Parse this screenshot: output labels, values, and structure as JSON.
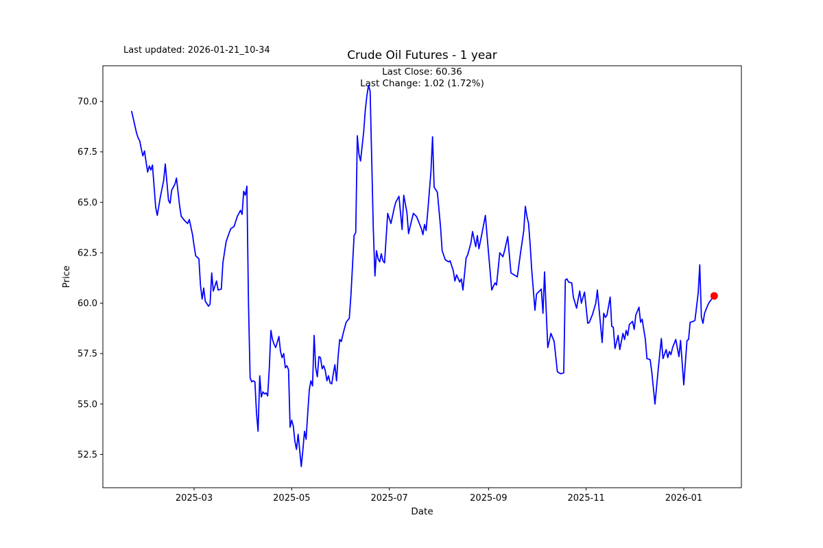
{
  "page": {
    "background": "#ffffff"
  },
  "header": {
    "last_updated": "Last updated: 2026-01-21_10-34"
  },
  "chart_data": {
    "type": "line",
    "title": "Crude Oil Futures - 1 year",
    "annotation": [
      "Last Close: 60.36",
      "Last Change: 1.02 (1.72%)"
    ],
    "last_close": 60.36,
    "last_change": "1.02 (1.72%)",
    "xlabel": "Date",
    "ylabel": "Price",
    "legend": "none",
    "grid": false,
    "line_color": "#0000ff",
    "marker_color": "#ff0000",
    "line_width": 1.8,
    "marker_radius": 5.5,
    "y_ticks": [
      52.5,
      55.0,
      57.5,
      60.0,
      62.5,
      65.0,
      67.5,
      70.0
    ],
    "x_ticks": [
      {
        "date": "2025-03-01",
        "label": "2025-03"
      },
      {
        "date": "2025-05-01",
        "label": "2025-05"
      },
      {
        "date": "2025-07-01",
        "label": "2025-07"
      },
      {
        "date": "2025-09-01",
        "label": "2025-09"
      },
      {
        "date": "2025-11-01",
        "label": "2025-11"
      },
      {
        "date": "2026-01-01",
        "label": "2026-01"
      }
    ],
    "ylim": [
      50.85,
      71.77
    ],
    "x_epoch": "2025-01-21",
    "xlim_dates": [
      "2025-01-03",
      "2026-02-06"
    ],
    "series": [
      {
        "name": "Price",
        "points": [
          [
            "2025-01-21",
            69.5
          ],
          [
            "2025-01-23",
            68.8
          ],
          [
            "2025-01-24",
            68.45
          ],
          [
            "2025-01-25",
            68.2
          ],
          [
            "2025-01-26",
            68.05
          ],
          [
            "2025-01-27",
            67.65
          ],
          [
            "2025-01-28",
            67.3
          ],
          [
            "2025-01-29",
            67.55
          ],
          [
            "2025-01-30",
            67.0
          ],
          [
            "2025-01-31",
            66.5
          ],
          [
            "2025-02-01",
            66.8
          ],
          [
            "2025-02-02",
            66.6
          ],
          [
            "2025-02-03",
            66.85
          ],
          [
            "2025-02-05",
            64.75
          ],
          [
            "2025-02-06",
            64.35
          ],
          [
            "2025-02-08",
            65.3
          ],
          [
            "2025-02-10",
            66.1
          ],
          [
            "2025-02-11",
            66.9
          ],
          [
            "2025-02-13",
            65.1
          ],
          [
            "2025-02-14",
            64.95
          ],
          [
            "2025-02-15",
            65.6
          ],
          [
            "2025-02-17",
            65.9
          ],
          [
            "2025-02-18",
            66.2
          ],
          [
            "2025-02-20",
            64.8
          ],
          [
            "2025-02-21",
            64.3
          ],
          [
            "2025-02-23",
            64.1
          ],
          [
            "2025-02-25",
            63.95
          ],
          [
            "2025-02-26",
            64.15
          ],
          [
            "2025-02-28",
            63.4
          ],
          [
            "2025-03-01",
            62.85
          ],
          [
            "2025-03-02",
            62.35
          ],
          [
            "2025-03-04",
            62.2
          ],
          [
            "2025-03-05",
            60.9
          ],
          [
            "2025-03-06",
            60.2
          ],
          [
            "2025-03-07",
            60.75
          ],
          [
            "2025-03-08",
            60.1
          ],
          [
            "2025-03-10",
            59.85
          ],
          [
            "2025-03-11",
            59.95
          ],
          [
            "2025-03-12",
            61.5
          ],
          [
            "2025-03-13",
            60.6
          ],
          [
            "2025-03-15",
            61.1
          ],
          [
            "2025-03-16",
            60.65
          ],
          [
            "2025-03-18",
            60.7
          ],
          [
            "2025-03-19",
            62.0
          ],
          [
            "2025-03-21",
            63.05
          ],
          [
            "2025-03-23",
            63.5
          ],
          [
            "2025-03-24",
            63.7
          ],
          [
            "2025-03-26",
            63.8
          ],
          [
            "2025-03-28",
            64.3
          ],
          [
            "2025-03-30",
            64.6
          ],
          [
            "2025-03-31",
            64.4
          ],
          [
            "2025-04-01",
            65.55
          ],
          [
            "2025-04-02",
            65.35
          ],
          [
            "2025-04-03",
            65.8
          ],
          [
            "2025-04-04",
            60.0
          ],
          [
            "2025-04-05",
            56.3
          ],
          [
            "2025-04-06",
            56.1
          ],
          [
            "2025-04-07",
            56.15
          ],
          [
            "2025-04-08",
            56.1
          ],
          [
            "2025-04-09",
            54.55
          ],
          [
            "2025-04-10",
            53.65
          ],
          [
            "2025-04-11",
            56.4
          ],
          [
            "2025-04-12",
            55.35
          ],
          [
            "2025-04-13",
            55.6
          ],
          [
            "2025-04-14",
            55.5
          ],
          [
            "2025-04-15",
            55.55
          ],
          [
            "2025-04-16",
            55.4
          ],
          [
            "2025-04-17",
            56.8
          ],
          [
            "2025-04-18",
            58.65
          ],
          [
            "2025-04-19",
            58.2
          ],
          [
            "2025-04-20",
            57.95
          ],
          [
            "2025-04-21",
            57.8
          ],
          [
            "2025-04-23",
            58.35
          ],
          [
            "2025-04-24",
            57.6
          ],
          [
            "2025-04-25",
            57.3
          ],
          [
            "2025-04-26",
            57.5
          ],
          [
            "2025-04-27",
            56.8
          ],
          [
            "2025-04-28",
            56.9
          ],
          [
            "2025-04-29",
            56.7
          ],
          [
            "2025-04-30",
            53.85
          ],
          [
            "2025-05-01",
            54.2
          ],
          [
            "2025-05-02",
            53.9
          ],
          [
            "2025-05-03",
            53.15
          ],
          [
            "2025-05-04",
            52.75
          ],
          [
            "2025-05-05",
            53.5
          ],
          [
            "2025-05-07",
            51.9
          ],
          [
            "2025-05-08",
            52.75
          ],
          [
            "2025-05-09",
            53.65
          ],
          [
            "2025-05-10",
            53.25
          ],
          [
            "2025-05-11",
            54.55
          ],
          [
            "2025-05-12",
            55.7
          ],
          [
            "2025-05-13",
            56.15
          ],
          [
            "2025-05-14",
            55.9
          ],
          [
            "2025-05-15",
            58.4
          ],
          [
            "2025-05-16",
            56.8
          ],
          [
            "2025-05-17",
            56.35
          ],
          [
            "2025-05-18",
            57.35
          ],
          [
            "2025-05-19",
            57.3
          ],
          [
            "2025-05-20",
            56.75
          ],
          [
            "2025-05-21",
            56.9
          ],
          [
            "2025-05-22",
            56.65
          ],
          [
            "2025-05-23",
            56.15
          ],
          [
            "2025-05-24",
            56.4
          ],
          [
            "2025-05-25",
            56.05
          ],
          [
            "2025-05-26",
            56.0
          ],
          [
            "2025-05-27",
            56.5
          ],
          [
            "2025-05-28",
            56.95
          ],
          [
            "2025-05-29",
            56.15
          ],
          [
            "2025-05-30",
            57.35
          ],
          [
            "2025-05-31",
            58.2
          ],
          [
            "2025-06-01",
            58.1
          ],
          [
            "2025-06-02",
            58.45
          ],
          [
            "2025-06-03",
            58.75
          ],
          [
            "2025-06-04",
            59.05
          ],
          [
            "2025-06-06",
            59.25
          ],
          [
            "2025-06-07",
            60.4
          ],
          [
            "2025-06-09",
            63.35
          ],
          [
            "2025-06-10",
            63.5
          ],
          [
            "2025-06-11",
            68.3
          ],
          [
            "2025-06-12",
            67.4
          ],
          [
            "2025-06-13",
            67.05
          ],
          [
            "2025-06-15",
            68.5
          ],
          [
            "2025-06-16",
            69.6
          ],
          [
            "2025-06-17",
            70.3
          ],
          [
            "2025-06-18",
            70.8
          ],
          [
            "2025-06-19",
            70.5
          ],
          [
            "2025-06-21",
            63.7
          ],
          [
            "2025-06-22",
            61.35
          ],
          [
            "2025-06-23",
            62.6
          ],
          [
            "2025-06-24",
            62.2
          ],
          [
            "2025-06-25",
            62.05
          ],
          [
            "2025-06-26",
            62.45
          ],
          [
            "2025-06-27",
            62.1
          ],
          [
            "2025-06-28",
            62.0
          ],
          [
            "2025-06-30",
            64.45
          ],
          [
            "2025-07-02",
            63.95
          ],
          [
            "2025-07-04",
            64.7
          ],
          [
            "2025-07-05",
            65.0
          ],
          [
            "2025-07-07",
            65.3
          ],
          [
            "2025-07-09",
            63.65
          ],
          [
            "2025-07-10",
            65.35
          ],
          [
            "2025-07-12",
            64.5
          ],
          [
            "2025-07-13",
            63.45
          ],
          [
            "2025-07-14",
            63.8
          ],
          [
            "2025-07-16",
            64.45
          ],
          [
            "2025-07-18",
            64.3
          ],
          [
            "2025-07-20",
            63.9
          ],
          [
            "2025-07-21",
            63.7
          ],
          [
            "2025-07-22",
            63.4
          ],
          [
            "2025-07-23",
            63.9
          ],
          [
            "2025-07-24",
            63.6
          ],
          [
            "2025-07-25",
            64.55
          ],
          [
            "2025-07-27",
            66.5
          ],
          [
            "2025-07-28",
            68.25
          ],
          [
            "2025-07-29",
            65.75
          ],
          [
            "2025-07-31",
            65.5
          ],
          [
            "2025-08-02",
            63.8
          ],
          [
            "2025-08-03",
            62.6
          ],
          [
            "2025-08-05",
            62.15
          ],
          [
            "2025-08-07",
            62.05
          ],
          [
            "2025-08-08",
            62.1
          ],
          [
            "2025-08-10",
            61.6
          ],
          [
            "2025-08-11",
            61.1
          ],
          [
            "2025-08-12",
            61.4
          ],
          [
            "2025-08-14",
            61.05
          ],
          [
            "2025-08-15",
            61.2
          ],
          [
            "2025-08-16",
            60.65
          ],
          [
            "2025-08-18",
            62.25
          ],
          [
            "2025-08-19",
            62.4
          ],
          [
            "2025-08-21",
            63.0
          ],
          [
            "2025-08-22",
            63.55
          ],
          [
            "2025-08-24",
            62.8
          ],
          [
            "2025-08-25",
            63.35
          ],
          [
            "2025-08-26",
            62.7
          ],
          [
            "2025-08-28",
            63.5
          ],
          [
            "2025-08-30",
            64.35
          ],
          [
            "2025-09-01",
            62.5
          ],
          [
            "2025-09-03",
            60.65
          ],
          [
            "2025-09-05",
            61.0
          ],
          [
            "2025-09-06",
            60.9
          ],
          [
            "2025-09-08",
            62.5
          ],
          [
            "2025-09-10",
            62.3
          ],
          [
            "2025-09-11",
            62.6
          ],
          [
            "2025-09-13",
            63.3
          ],
          [
            "2025-09-15",
            61.5
          ],
          [
            "2025-09-17",
            61.4
          ],
          [
            "2025-09-19",
            61.3
          ],
          [
            "2025-09-21",
            62.5
          ],
          [
            "2025-09-23",
            63.6
          ],
          [
            "2025-09-24",
            64.8
          ],
          [
            "2025-09-25",
            64.3
          ],
          [
            "2025-09-26",
            63.95
          ],
          [
            "2025-09-27",
            62.9
          ],
          [
            "2025-09-28",
            61.65
          ],
          [
            "2025-09-30",
            59.65
          ],
          [
            "2025-10-01",
            60.45
          ],
          [
            "2025-10-04",
            60.7
          ],
          [
            "2025-10-05",
            59.5
          ],
          [
            "2025-10-06",
            61.55
          ],
          [
            "2025-10-08",
            57.8
          ],
          [
            "2025-10-10",
            58.5
          ],
          [
            "2025-10-12",
            58.1
          ],
          [
            "2025-10-14",
            56.6
          ],
          [
            "2025-10-16",
            56.5
          ],
          [
            "2025-10-18",
            56.55
          ],
          [
            "2025-10-19",
            61.15
          ],
          [
            "2025-10-20",
            61.2
          ],
          [
            "2025-10-21",
            61.05
          ],
          [
            "2025-10-23",
            61.0
          ],
          [
            "2025-10-24",
            60.3
          ],
          [
            "2025-10-26",
            59.75
          ],
          [
            "2025-10-27",
            60.2
          ],
          [
            "2025-10-28",
            60.6
          ],
          [
            "2025-10-29",
            60.0
          ],
          [
            "2025-10-31",
            60.55
          ],
          [
            "2025-11-02",
            59.0
          ],
          [
            "2025-11-03",
            59.05
          ],
          [
            "2025-11-05",
            59.45
          ],
          [
            "2025-11-07",
            60.0
          ],
          [
            "2025-11-08",
            60.65
          ],
          [
            "2025-11-11",
            58.05
          ],
          [
            "2025-11-12",
            59.5
          ],
          [
            "2025-11-13",
            59.3
          ],
          [
            "2025-11-14",
            59.4
          ],
          [
            "2025-11-16",
            60.3
          ],
          [
            "2025-11-17",
            58.85
          ],
          [
            "2025-11-18",
            58.8
          ],
          [
            "2025-11-19",
            57.75
          ],
          [
            "2025-11-21",
            58.4
          ],
          [
            "2025-11-22",
            57.7
          ],
          [
            "2025-11-24",
            58.5
          ],
          [
            "2025-11-25",
            58.2
          ],
          [
            "2025-11-26",
            58.65
          ],
          [
            "2025-11-27",
            58.4
          ],
          [
            "2025-11-28",
            58.95
          ],
          [
            "2025-11-30",
            59.1
          ],
          [
            "2025-12-01",
            58.7
          ],
          [
            "2025-12-02",
            59.4
          ],
          [
            "2025-12-04",
            59.8
          ],
          [
            "2025-12-05",
            59.05
          ],
          [
            "2025-12-06",
            59.2
          ],
          [
            "2025-12-08",
            58.2
          ],
          [
            "2025-12-09",
            57.25
          ],
          [
            "2025-12-11",
            57.2
          ],
          [
            "2025-12-12",
            56.6
          ],
          [
            "2025-12-14",
            55.0
          ],
          [
            "2025-12-16",
            56.7
          ],
          [
            "2025-12-18",
            58.25
          ],
          [
            "2025-12-19",
            57.25
          ],
          [
            "2025-12-21",
            57.7
          ],
          [
            "2025-12-22",
            57.3
          ],
          [
            "2025-12-23",
            57.6
          ],
          [
            "2025-12-24",
            57.45
          ],
          [
            "2025-12-25",
            57.8
          ],
          [
            "2025-12-27",
            58.2
          ],
          [
            "2025-12-29",
            57.35
          ],
          [
            "2025-12-30",
            58.15
          ],
          [
            "2026-01-01",
            55.95
          ],
          [
            "2026-01-03",
            58.15
          ],
          [
            "2026-01-04",
            58.2
          ],
          [
            "2026-01-05",
            59.05
          ],
          [
            "2026-01-07",
            59.1
          ],
          [
            "2026-01-08",
            59.15
          ],
          [
            "2026-01-10",
            60.5
          ],
          [
            "2026-01-11",
            61.9
          ],
          [
            "2026-01-12",
            59.3
          ],
          [
            "2026-01-13",
            59.0
          ],
          [
            "2026-01-14",
            59.5
          ],
          [
            "2026-01-16",
            59.9
          ],
          [
            "2026-01-17",
            60.05
          ],
          [
            "2026-01-20",
            60.36
          ]
        ]
      }
    ]
  }
}
